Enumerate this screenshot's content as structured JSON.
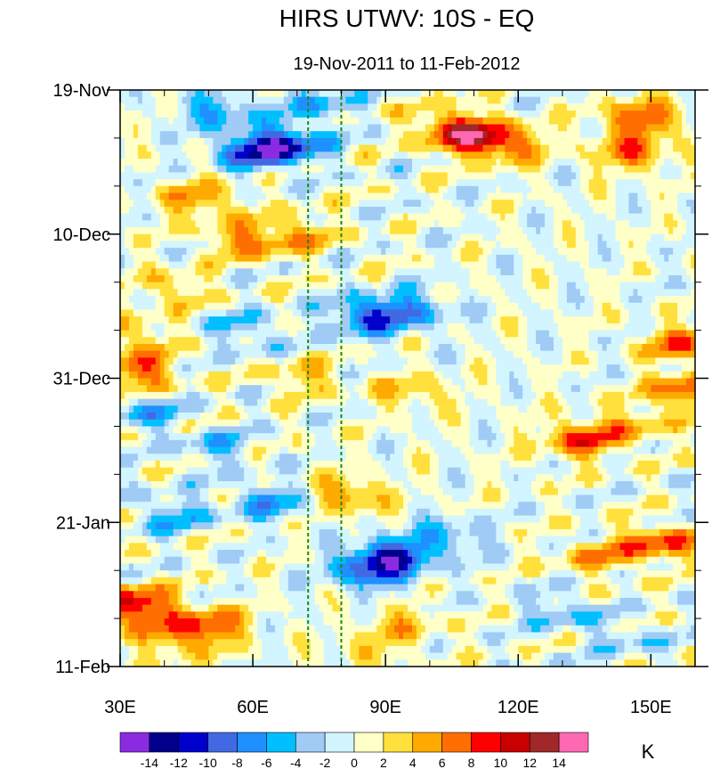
{
  "chart_data": {
    "type": "heatmap",
    "title": "HIRS UTWV: 10S - EQ",
    "subtitle": "19-Nov-2011 to 11-Feb-2012",
    "xlabel": "",
    "ylabel": "",
    "x_range": [
      30,
      160
    ],
    "x_ticks": [
      {
        "value": 30,
        "label": "30E"
      },
      {
        "value": 60,
        "label": "60E"
      },
      {
        "value": 90,
        "label": "90E"
      },
      {
        "value": 120,
        "label": "120E"
      },
      {
        "value": 150,
        "label": "150E"
      }
    ],
    "x_minor_step": 10,
    "y_range_days": [
      0,
      84
    ],
    "y_ticks": [
      {
        "day": 0,
        "label": "19-Nov"
      },
      {
        "day": 21,
        "label": "10-Dec"
      },
      {
        "day": 42,
        "label": "31-Dec"
      },
      {
        "day": 63,
        "label": "21-Jan"
      },
      {
        "day": 84,
        "label": "11-Feb"
      }
    ],
    "y_minor_step_days": 7,
    "reference_lines_longitude": [
      72.5,
      80
    ],
    "reference_line_color": "#1a8a1a",
    "colorbar": {
      "unit": "K",
      "levels": [
        -14,
        -12,
        -10,
        -8,
        -6,
        -4,
        -2,
        0,
        2,
        4,
        6,
        8,
        10,
        12,
        14
      ],
      "labels": [
        "-14",
        "-12",
        "-10",
        "-8",
        "-6",
        "-4",
        "-2",
        "0",
        "2",
        "4",
        "6",
        "8",
        "10",
        "12",
        "14"
      ],
      "colors": [
        "#8a2be2",
        "#00008b",
        "#0000cd",
        "#4169e1",
        "#1e90ff",
        "#00bfff",
        "#a0cbf5",
        "#d2f5ff",
        "#ffffc8",
        "#ffe03c",
        "#ffaa00",
        "#ff6e00",
        "#ff0000",
        "#c80000",
        "#a02828",
        "#ff69b4"
      ]
    },
    "anomaly_features_K": [
      {
        "lon": 60,
        "day": 9,
        "value": -9
      },
      {
        "lon": 68,
        "day": 8,
        "value": -10
      },
      {
        "lon": 52,
        "day": 3,
        "value": -6
      },
      {
        "lon": 74,
        "day": 2,
        "value": -5
      },
      {
        "lon": 110,
        "day": 7,
        "value": 9
      },
      {
        "lon": 104,
        "day": 5,
        "value": 6
      },
      {
        "lon": 118,
        "day": 8,
        "value": 6
      },
      {
        "lon": 146,
        "day": 9,
        "value": 7
      },
      {
        "lon": 148,
        "day": 4,
        "value": 8
      },
      {
        "lon": 48,
        "day": 16,
        "value": 6
      },
      {
        "lon": 58,
        "day": 22,
        "value": 6
      },
      {
        "lon": 70,
        "day": 21,
        "value": 5
      },
      {
        "lon": 42,
        "day": 29,
        "value": 4
      },
      {
        "lon": 86,
        "day": 33,
        "value": -9
      },
      {
        "lon": 96,
        "day": 32,
        "value": -6
      },
      {
        "lon": 58,
        "day": 35,
        "value": -4
      },
      {
        "lon": 34,
        "day": 41,
        "value": 8
      },
      {
        "lon": 34,
        "day": 36,
        "value": 4
      },
      {
        "lon": 157,
        "day": 37,
        "value": 7
      },
      {
        "lon": 158,
        "day": 44,
        "value": 8
      },
      {
        "lon": 72,
        "day": 42,
        "value": 4
      },
      {
        "lon": 96,
        "day": 44,
        "value": 4
      },
      {
        "lon": 134,
        "day": 51,
        "value": 8
      },
      {
        "lon": 146,
        "day": 49,
        "value": 4
      },
      {
        "lon": 36,
        "day": 47,
        "value": -5
      },
      {
        "lon": 52,
        "day": 52,
        "value": -4
      },
      {
        "lon": 64,
        "day": 60,
        "value": -6
      },
      {
        "lon": 42,
        "day": 62,
        "value": -5
      },
      {
        "lon": 92,
        "day": 68,
        "value": -10
      },
      {
        "lon": 86,
        "day": 70,
        "value": -8
      },
      {
        "lon": 104,
        "day": 65,
        "value": -5
      },
      {
        "lon": 82,
        "day": 59,
        "value": 6
      },
      {
        "lon": 152,
        "day": 66,
        "value": 8
      },
      {
        "lon": 138,
        "day": 68,
        "value": 5
      },
      {
        "lon": 33,
        "day": 75,
        "value": 12
      },
      {
        "lon": 50,
        "day": 78,
        "value": 8
      },
      {
        "lon": 42,
        "day": 80,
        "value": 5
      },
      {
        "lon": 94,
        "day": 78,
        "value": 4
      },
      {
        "lon": 86,
        "day": 82,
        "value": 3
      },
      {
        "lon": 130,
        "day": 76,
        "value": -4
      },
      {
        "lon": 145,
        "day": 80,
        "value": -3
      }
    ]
  }
}
